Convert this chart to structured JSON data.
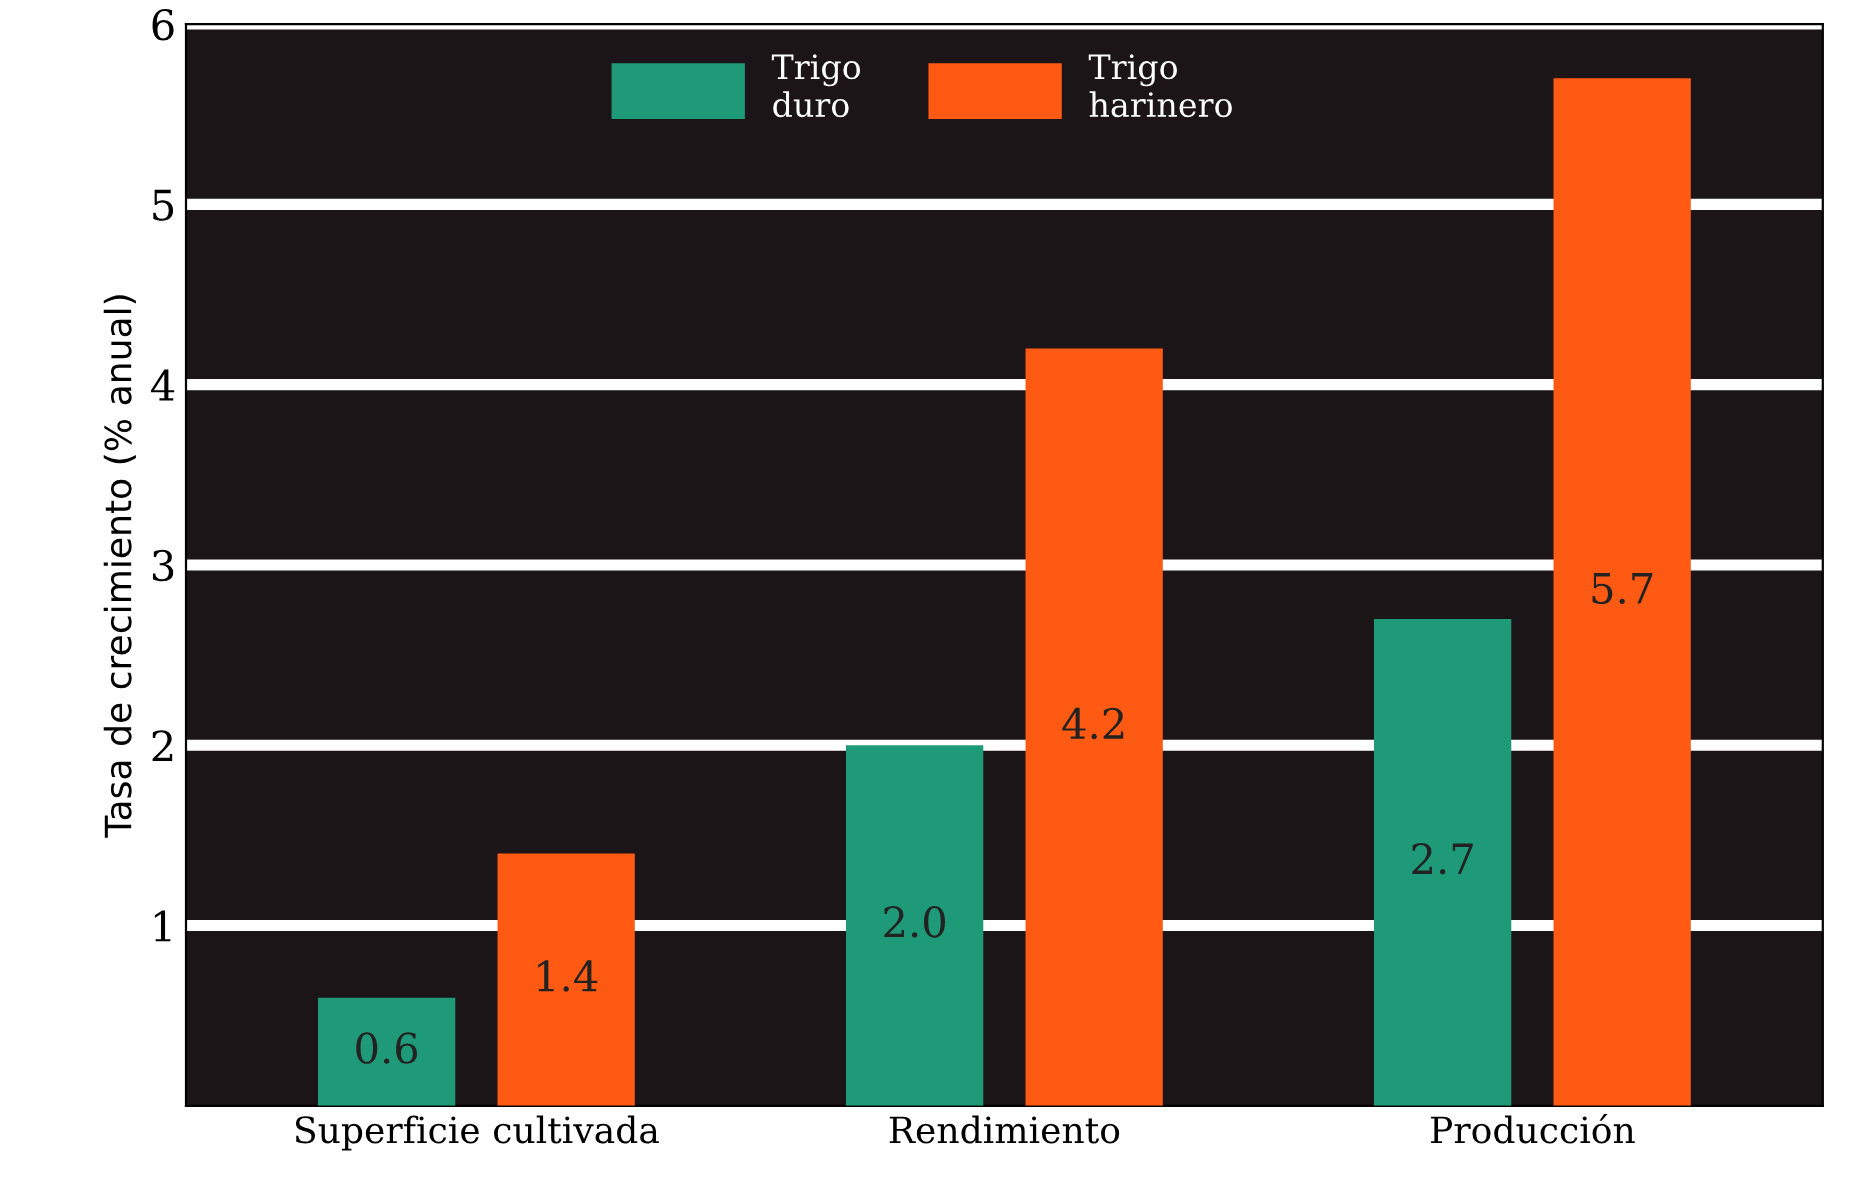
{
  "chart_data": {
    "type": "bar",
    "ylabel": "Tasa de crecimiento (% anual)",
    "categories": [
      "Superficie cultivada",
      "Rendimiento",
      "Producción"
    ],
    "series": [
      {
        "name": "Trigo\nduro",
        "color": "#1f9a78",
        "values": [
          0.6,
          2.0,
          2.7
        ],
        "value_labels": [
          "0.6",
          "2.0",
          "2.7"
        ]
      },
      {
        "name": "Trigo\nharinero",
        "color": "#ff5a14",
        "values": [
          1.4,
          4.2,
          5.7
        ],
        "value_labels": [
          "1.4",
          "4.2",
          "5.7"
        ]
      }
    ],
    "ylim": [
      0,
      6
    ],
    "yticks": [
      1,
      2,
      3,
      4,
      5,
      6
    ],
    "grid": "y",
    "legend": "top"
  }
}
